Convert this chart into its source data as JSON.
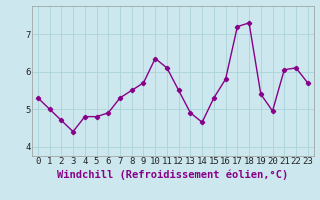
{
  "x": [
    0,
    1,
    2,
    3,
    4,
    5,
    6,
    7,
    8,
    9,
    10,
    11,
    12,
    13,
    14,
    15,
    16,
    17,
    18,
    19,
    20,
    21,
    22,
    23
  ],
  "y": [
    5.3,
    5.0,
    4.7,
    4.4,
    4.8,
    4.8,
    4.9,
    5.3,
    5.5,
    5.7,
    6.35,
    6.1,
    5.5,
    4.9,
    4.65,
    5.3,
    5.8,
    7.2,
    7.3,
    5.4,
    4.95,
    6.05,
    6.1,
    5.7
  ],
  "line_color": "#880088",
  "marker": "P",
  "marker_size": 3,
  "bg_color": "#cce8ee",
  "grid_color": "#aad4d8",
  "xlabel": "Windchill (Refroidissement éolien,°C)",
  "ylabel": "",
  "title": "",
  "xlim": [
    -0.5,
    23.5
  ],
  "ylim": [
    3.75,
    7.75
  ],
  "yticks": [
    4,
    5,
    6,
    7
  ],
  "xtick_labels": [
    "0",
    "1",
    "2",
    "3",
    "4",
    "5",
    "6",
    "7",
    "8",
    "9",
    "10",
    "11",
    "12",
    "13",
    "14",
    "15",
    "16",
    "17",
    "18",
    "19",
    "20",
    "21",
    "22",
    "23"
  ],
  "xlabel_fontsize": 7.5,
  "tick_fontsize": 6.5,
  "linewidth": 1.0
}
